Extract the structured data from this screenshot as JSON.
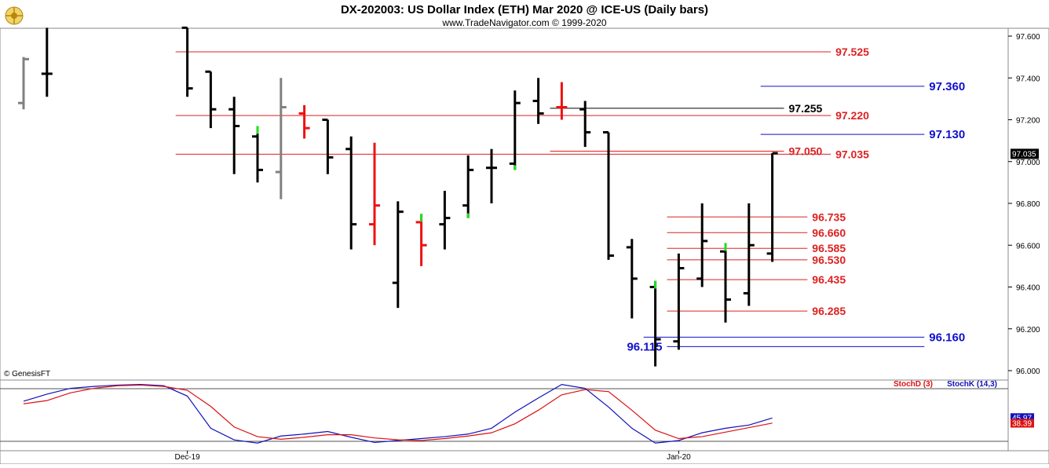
{
  "header": {
    "title": "DX-202003:  US Dollar Index (ETH) Mar 2020 @ ICE-US  (Daily bars)",
    "subtitle": "www.TradeNavigator.com © 1999-2020"
  },
  "copyright": "© GenesisFT",
  "logo_icon": "ship-wheel-icon",
  "colors": {
    "bar": "#000000",
    "bar_up_accent": "#22dd22",
    "bar_red": "#ee1111",
    "bar_gray": "#808080",
    "red_level": "#dd2222",
    "blue_level": "#1111cc",
    "stoch_d": "#dd1111",
    "stoch_k": "#1111bb"
  },
  "chart_data": [
    {
      "type": "ohlc",
      "name": "price",
      "yaxis": {
        "ticks": [
          "97.600",
          "97.400",
          "97.200",
          "97.000",
          "96.800",
          "96.600",
          "96.400",
          "96.200",
          "96.000"
        ],
        "tick_values": [
          97.6,
          97.4,
          97.2,
          97.0,
          96.8,
          96.6,
          96.4,
          96.2,
          96.0
        ],
        "range": [
          95.96,
          97.64
        ]
      },
      "last_price_label": "97.035",
      "xaxis": {
        "labels": [
          {
            "text": "Dec-19",
            "index": 7
          },
          {
            "text": "Jan-20",
            "index": 28
          }
        ]
      },
      "bars": [
        {
          "i": 0,
          "o": 97.28,
          "h": 97.5,
          "l": 97.25,
          "c": 97.49,
          "color": "gray"
        },
        {
          "i": 1,
          "o": 97.42,
          "h": 97.64,
          "l": 97.31,
          "c": 97.42,
          "color": "black"
        },
        {
          "i": 7,
          "o": 97.64,
          "h": 97.64,
          "l": 97.31,
          "c": 97.35,
          "color": "black"
        },
        {
          "i": 8,
          "o": 97.43,
          "h": 97.43,
          "l": 97.16,
          "c": 97.25,
          "color": "black"
        },
        {
          "i": 9,
          "o": 97.25,
          "h": 97.31,
          "l": 96.94,
          "c": 97.17,
          "color": "black"
        },
        {
          "i": 10,
          "o": 97.12,
          "h": 97.17,
          "l": 96.9,
          "c": 96.96,
          "color": "black",
          "accent": "top"
        },
        {
          "i": 11,
          "o": 96.95,
          "h": 97.4,
          "l": 96.82,
          "c": 97.26,
          "color": "gray"
        },
        {
          "i": 12,
          "o": 97.23,
          "h": 97.27,
          "l": 97.11,
          "c": 97.16,
          "color": "red"
        },
        {
          "i": 13,
          "o": 97.2,
          "h": 97.2,
          "l": 96.94,
          "c": 97.02,
          "color": "black"
        },
        {
          "i": 14,
          "o": 97.06,
          "h": 97.12,
          "l": 96.58,
          "c": 96.7,
          "color": "black"
        },
        {
          "i": 15,
          "o": 96.7,
          "h": 97.09,
          "l": 96.6,
          "c": 96.79,
          "color": "red"
        },
        {
          "i": 16,
          "o": 96.42,
          "h": 96.81,
          "l": 96.3,
          "c": 96.76,
          "color": "black"
        },
        {
          "i": 17,
          "o": 96.71,
          "h": 96.75,
          "l": 96.5,
          "c": 96.6,
          "color": "red",
          "accent": "top"
        },
        {
          "i": 18,
          "o": 96.7,
          "h": 96.86,
          "l": 96.58,
          "c": 96.73,
          "color": "black"
        },
        {
          "i": 19,
          "o": 96.79,
          "h": 97.03,
          "l": 96.73,
          "c": 96.96,
          "color": "black",
          "accent": "bottom"
        },
        {
          "i": 20,
          "o": 96.97,
          "h": 97.06,
          "l": 96.8,
          "c": 96.97,
          "color": "black"
        },
        {
          "i": 21,
          "o": 96.99,
          "h": 97.34,
          "l": 96.96,
          "c": 97.28,
          "color": "black",
          "accent": "bottom"
        },
        {
          "i": 22,
          "o": 97.29,
          "h": 97.4,
          "l": 97.18,
          "c": 97.23,
          "color": "black"
        },
        {
          "i": 23,
          "o": 97.26,
          "h": 97.38,
          "l": 97.2,
          "c": 97.26,
          "color": "red"
        },
        {
          "i": 24,
          "o": 97.25,
          "h": 97.29,
          "l": 97.07,
          "c": 97.14,
          "color": "black"
        },
        {
          "i": 25,
          "o": 97.14,
          "h": 97.14,
          "l": 96.53,
          "c": 96.55,
          "color": "black"
        },
        {
          "i": 26,
          "o": 96.59,
          "h": 96.63,
          "l": 96.25,
          "c": 96.44,
          "color": "black"
        },
        {
          "i": 27,
          "o": 96.4,
          "h": 96.43,
          "l": 96.02,
          "c": 96.15,
          "color": "black",
          "accent": "top"
        },
        {
          "i": 28,
          "o": 96.14,
          "h": 96.56,
          "l": 96.1,
          "c": 96.49,
          "color": "black"
        },
        {
          "i": 29,
          "o": 96.44,
          "h": 96.8,
          "l": 96.4,
          "c": 96.62,
          "color": "black"
        },
        {
          "i": 30,
          "o": 96.57,
          "h": 96.61,
          "l": 96.23,
          "c": 96.34,
          "color": "black",
          "accent": "top"
        },
        {
          "i": 31,
          "o": 96.37,
          "h": 96.8,
          "l": 96.31,
          "c": 96.6,
          "color": "black"
        },
        {
          "i": 32,
          "o": 96.56,
          "h": 97.04,
          "l": 96.52,
          "c": 97.04,
          "color": "black"
        }
      ],
      "levels": [
        {
          "value": 97.525,
          "label": "97.525",
          "color": "red",
          "from": 6.5,
          "to": 34.5,
          "label_at": "right"
        },
        {
          "value": 97.36,
          "label": "97.360",
          "color": "blue",
          "from": 31.5,
          "to": 38.5,
          "label_at": "far"
        },
        {
          "value": 97.255,
          "label": "97.255",
          "color": "black",
          "from": 22.5,
          "to": 32.5,
          "label_at": "end"
        },
        {
          "value": 97.22,
          "label": "97.220",
          "color": "red",
          "from": 6.5,
          "to": 34.5,
          "label_at": "right"
        },
        {
          "value": 97.13,
          "label": "97.130",
          "color": "blue",
          "from": 31.5,
          "to": 38.5,
          "label_at": "far"
        },
        {
          "value": 97.05,
          "label": "97.050",
          "color": "red",
          "from": 22.5,
          "to": 32.5,
          "label_at": "end"
        },
        {
          "value": 97.035,
          "label": "97.035",
          "color": "red",
          "from": 6.5,
          "to": 34.5,
          "label_at": "right"
        },
        {
          "value": 96.735,
          "label": "96.735",
          "color": "red",
          "from": 27.5,
          "to": 33.5,
          "label_at": "end"
        },
        {
          "value": 96.66,
          "label": "96.660",
          "color": "red",
          "from": 27.5,
          "to": 33.5,
          "label_at": "end"
        },
        {
          "value": 96.585,
          "label": "96.585",
          "color": "red",
          "from": 27.5,
          "to": 33.5,
          "label_at": "end"
        },
        {
          "value": 96.53,
          "label": "96.530",
          "color": "red",
          "from": 27.5,
          "to": 33.5,
          "label_at": "end"
        },
        {
          "value": 96.435,
          "label": "96.435",
          "color": "red",
          "from": 27.5,
          "to": 33.5,
          "label_at": "end"
        },
        {
          "value": 96.285,
          "label": "96.285",
          "color": "red",
          "from": 27.5,
          "to": 33.5,
          "label_at": "end"
        },
        {
          "value": 96.16,
          "label": "96.160",
          "color": "blue",
          "from": 26.5,
          "to": 38.5,
          "label_at": "far"
        },
        {
          "value": 96.115,
          "label": "96.115",
          "color": "blue",
          "from": 27.5,
          "to": 38.5,
          "label_at": "left"
        }
      ]
    },
    {
      "type": "line",
      "name": "stochastic",
      "yrange": [
        0,
        100
      ],
      "legend": [
        "StochD (3)",
        "StochK (14,3)"
      ],
      "last_labels": {
        "k": "45.97",
        "d": "38.39"
      },
      "series": [
        {
          "name": "StochK (14,3)",
          "color": "blue",
          "points": [
            [
              0,
              72
            ],
            [
              1,
              83
            ],
            [
              2,
              92
            ],
            [
              3,
              95
            ],
            [
              4,
              97
            ],
            [
              5,
              98
            ],
            [
              6,
              96
            ],
            [
              7,
              80
            ],
            [
              8,
              30
            ],
            [
              9,
              12
            ],
            [
              10,
              7
            ],
            [
              11,
              18
            ],
            [
              12,
              21
            ],
            [
              13,
              25
            ],
            [
              14,
              16
            ],
            [
              15,
              8
            ],
            [
              16,
              11
            ],
            [
              17,
              14
            ],
            [
              18,
              17
            ],
            [
              19,
              21
            ],
            [
              20,
              30
            ],
            [
              21,
              55
            ],
            [
              22,
              77
            ],
            [
              23,
              98
            ],
            [
              24,
              92
            ],
            [
              25,
              63
            ],
            [
              26,
              30
            ],
            [
              27,
              7
            ],
            [
              28,
              11
            ],
            [
              29,
              23
            ],
            [
              30,
              30
            ],
            [
              31,
              35
            ],
            [
              32,
              46
            ]
          ]
        },
        {
          "name": "StochD (3)",
          "color": "red",
          "points": [
            [
              0,
              68
            ],
            [
              1,
              73
            ],
            [
              2,
              85
            ],
            [
              3,
              92
            ],
            [
              4,
              96
            ],
            [
              5,
              97
            ],
            [
              6,
              95
            ],
            [
              7,
              89
            ],
            [
              8,
              64
            ],
            [
              9,
              32
            ],
            [
              10,
              17
            ],
            [
              11,
              13
            ],
            [
              12,
              16
            ],
            [
              13,
              20
            ],
            [
              14,
              20
            ],
            [
              15,
              15
            ],
            [
              16,
              12
            ],
            [
              17,
              11
            ],
            [
              18,
              14
            ],
            [
              19,
              18
            ],
            [
              20,
              23
            ],
            [
              21,
              37
            ],
            [
              22,
              58
            ],
            [
              23,
              82
            ],
            [
              24,
              90
            ],
            [
              25,
              87
            ],
            [
              26,
              58
            ],
            [
              27,
              27
            ],
            [
              28,
              14
            ],
            [
              29,
              17
            ],
            [
              30,
              24
            ],
            [
              31,
              31
            ],
            [
              32,
              38
            ]
          ]
        }
      ]
    }
  ]
}
